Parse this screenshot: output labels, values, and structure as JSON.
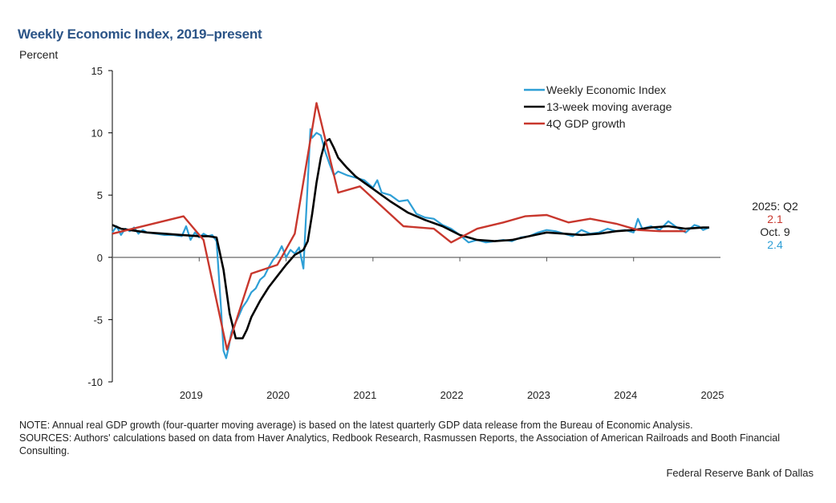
{
  "chart_data": {
    "type": "line",
    "title": "Weekly Economic Index, 2019–present",
    "ylabel": "Percent",
    "xlabel": "",
    "ylim": [
      -10,
      15
    ],
    "yticks": [
      15,
      10,
      5,
      0,
      -5,
      -10
    ],
    "xlim": [
      2018.0,
      2025.0
    ],
    "xticks": [
      2019,
      2020,
      2021,
      2022,
      2023,
      2024,
      2025
    ],
    "xtick_labels": [
      "2019",
      "2020",
      "2021",
      "2022",
      "2023",
      "2024",
      "2025"
    ],
    "grid": false,
    "legend_position": "top-right",
    "series": [
      {
        "name": "Weekly Economic Index",
        "color": "#2e9fd6",
        "x": [
          2018.0,
          2018.05,
          2018.1,
          2018.15,
          2018.2,
          2018.25,
          2018.3,
          2018.35,
          2018.4,
          2018.5,
          2018.6,
          2018.7,
          2018.8,
          2018.85,
          2018.9,
          2018.95,
          2019.0,
          2019.05,
          2019.1,
          2019.15,
          2019.2,
          2019.25,
          2019.28,
          2019.31,
          2019.34,
          2019.37,
          2019.4,
          2019.45,
          2019.5,
          2019.55,
          2019.6,
          2019.65,
          2019.7,
          2019.75,
          2019.8,
          2019.85,
          2019.9,
          2019.95,
          2020.0,
          2020.05,
          2020.1,
          2020.15,
          2020.2,
          2020.22,
          2020.25,
          2020.28,
          2020.3,
          2020.35,
          2020.4,
          2020.45,
          2020.5,
          2020.55,
          2020.6,
          2020.7,
          2020.8,
          2020.9,
          2021.0,
          2021.05,
          2021.1,
          2021.2,
          2021.3,
          2021.4,
          2021.5,
          2021.6,
          2021.7,
          2021.8,
          2021.9,
          2022.0,
          2022.1,
          2022.2,
          2022.3,
          2022.4,
          2022.5,
          2022.6,
          2022.7,
          2022.8,
          2022.9,
          2023.0,
          2023.1,
          2023.2,
          2023.3,
          2023.4,
          2023.5,
          2023.6,
          2023.7,
          2023.8,
          2023.9,
          2024.0,
          2024.05,
          2024.1,
          2024.2,
          2024.3,
          2024.4,
          2024.5,
          2024.6,
          2024.7,
          2024.75,
          2024.8,
          2024.87
        ],
        "y": [
          2.0,
          2.5,
          1.8,
          2.3,
          2.1,
          2.4,
          1.9,
          2.2,
          2.0,
          1.9,
          1.8,
          1.8,
          1.7,
          2.5,
          1.4,
          2.0,
          1.6,
          1.9,
          1.7,
          1.8,
          1.3,
          -4.0,
          -7.5,
          -8.1,
          -7.2,
          -6.0,
          -5.5,
          -4.8,
          -4.0,
          -3.5,
          -2.8,
          -2.5,
          -1.8,
          -1.5,
          -0.8,
          -0.2,
          0.2,
          0.9,
          0.0,
          0.6,
          0.3,
          0.8,
          -0.9,
          2.0,
          6.0,
          10.3,
          9.6,
          10.0,
          9.8,
          8.5,
          7.5,
          6.6,
          6.9,
          6.6,
          6.4,
          6.2,
          5.6,
          6.2,
          5.2,
          5.0,
          4.5,
          4.6,
          3.5,
          3.2,
          3.1,
          2.6,
          2.3,
          1.8,
          1.2,
          1.4,
          1.2,
          1.3,
          1.4,
          1.3,
          1.6,
          1.7,
          2.0,
          2.2,
          2.1,
          1.9,
          1.7,
          2.2,
          1.9,
          2.0,
          2.3,
          2.1,
          2.2,
          2.0,
          3.1,
          2.3,
          2.5,
          2.2,
          2.9,
          2.4,
          2.0,
          2.6,
          2.5,
          2.2,
          2.4
        ]
      },
      {
        "name": "13-week moving average",
        "color": "#000000",
        "x": [
          2018.0,
          2018.1,
          2018.2,
          2018.4,
          2018.6,
          2018.8,
          2019.0,
          2019.1,
          2019.2,
          2019.28,
          2019.35,
          2019.42,
          2019.5,
          2019.55,
          2019.6,
          2019.7,
          2019.8,
          2019.9,
          2020.0,
          2020.1,
          2020.2,
          2020.25,
          2020.3,
          2020.35,
          2020.4,
          2020.45,
          2020.5,
          2020.55,
          2020.6,
          2020.7,
          2020.8,
          2020.9,
          2021.0,
          2021.2,
          2021.4,
          2021.6,
          2021.8,
          2022.0,
          2022.2,
          2022.4,
          2022.6,
          2022.8,
          2023.0,
          2023.2,
          2023.4,
          2023.6,
          2023.8,
          2024.0,
          2024.2,
          2024.4,
          2024.6,
          2024.8,
          2024.87
        ],
        "y": [
          2.6,
          2.3,
          2.2,
          2.0,
          1.9,
          1.8,
          1.7,
          1.7,
          1.6,
          -1.0,
          -4.5,
          -6.5,
          -6.5,
          -5.8,
          -4.8,
          -3.5,
          -2.4,
          -1.5,
          -0.6,
          0.2,
          0.6,
          1.3,
          3.5,
          6.0,
          8.0,
          9.3,
          9.5,
          8.8,
          8.0,
          7.2,
          6.5,
          6.0,
          5.5,
          4.5,
          3.6,
          3.0,
          2.5,
          1.8,
          1.4,
          1.3,
          1.4,
          1.7,
          2.0,
          1.9,
          1.8,
          1.9,
          2.1,
          2.2,
          2.4,
          2.5,
          2.3,
          2.4,
          2.4
        ]
      },
      {
        "name": "4Q GDP growth",
        "color": "#c8372d",
        "x": [
          2018.0,
          2018.82,
          2019.05,
          2019.32,
          2019.6,
          2019.9,
          2020.1,
          2020.35,
          2020.6,
          2020.85,
          2021.35,
          2021.7,
          2021.9,
          2022.2,
          2022.5,
          2022.75,
          2023.0,
          2023.25,
          2023.5,
          2023.8,
          2024.05,
          2024.3,
          2024.6
        ],
        "y": [
          1.9,
          3.3,
          1.4,
          -7.4,
          -1.3,
          -0.6,
          1.9,
          12.4,
          5.2,
          5.7,
          2.5,
          2.3,
          1.2,
          2.3,
          2.8,
          3.3,
          3.4,
          2.8,
          3.1,
          2.7,
          2.2,
          2.1,
          2.1
        ]
      }
    ],
    "annotations": [
      {
        "text": "2025: Q2",
        "color": "#222222"
      },
      {
        "text": "2.1",
        "color": "#c8372d"
      },
      {
        "text": "Oct. 9",
        "color": "#222222"
      },
      {
        "text": "2.4",
        "color": "#2e9fd6"
      }
    ]
  },
  "footer": {
    "note": "NOTE: Annual real GDP growth (four-quarter moving average) is based on the latest quarterly GDP data release from the Bureau of Economic Analysis.",
    "sources": "SOURCES: Authors' calculations based on data from Haver Analytics, Redbook Research, Rasmussen Reports, the Association of American Railroads and Booth Financial Consulting.",
    "credit": "Federal Reserve Bank of Dallas"
  }
}
